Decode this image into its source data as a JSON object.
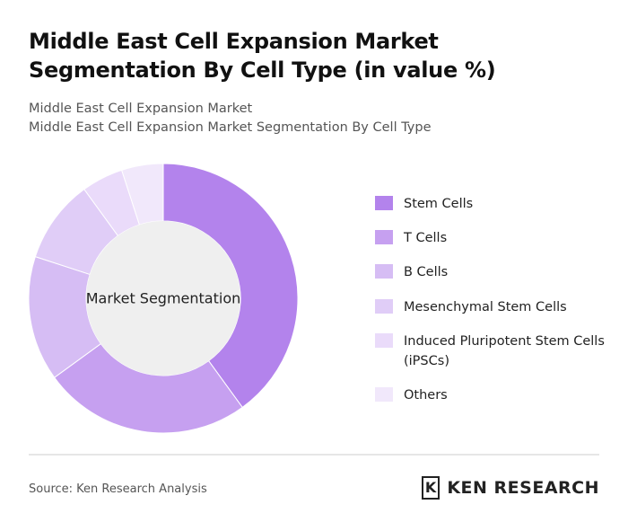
{
  "chart_data": {
    "type": "donut",
    "title": "Middle East Cell Expansion Market Segmentation By Cell Type (in value %)",
    "subtitles": [
      "Middle East Cell Expansion Market",
      "Middle East Cell Expansion Market Segmentation By Cell Type"
    ],
    "center_label": "Market Segmentation",
    "categories": [
      "Stem Cells",
      "T Cells",
      "B Cells",
      "Mesenchymal Stem Cells",
      "Induced Pluripotent Stem Cells (iPSCs)",
      "Others"
    ],
    "values": [
      40,
      25,
      15,
      10,
      5,
      5
    ],
    "colors": [
      "#b383ec",
      "#c6a0f0",
      "#d6bdf4",
      "#e0cdf7",
      "#eadbfa",
      "#f1e8fb"
    ],
    "source": "Source: Ken Research Analysis",
    "logo": "KEN RESEARCH"
  }
}
